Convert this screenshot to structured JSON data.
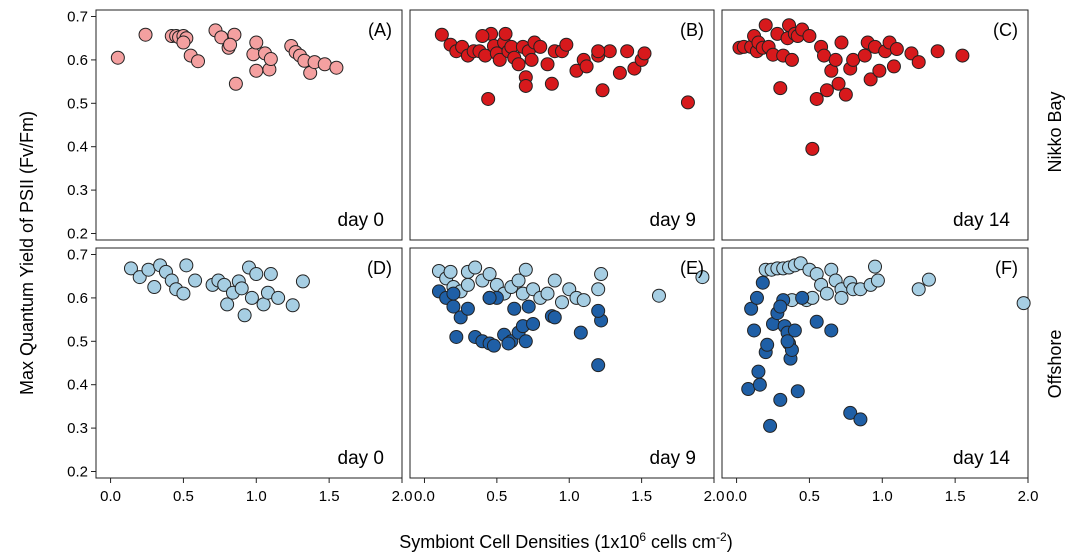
{
  "figure": {
    "ylabel": "Max Quantum Yield of PSII (Fv/Fm)",
    "xlabel_main": "Symbiont Cell Densities (1x10",
    "xlabel_sup1": "6",
    "xlabel_mid": " cells cm",
    "xlabel_sup2": "-2",
    "xlabel_end": ")",
    "row_labels": [
      "Nikko Bay",
      "Offshore"
    ]
  },
  "chart_data": [
    {
      "type": "scatter",
      "panel": "(A)",
      "day": "day 0",
      "row": "Nikko Bay",
      "color": "#F4A0A0",
      "xlim": [
        0,
        2.0
      ],
      "ylim": [
        0.18,
        0.72
      ],
      "grid": false,
      "points": [
        [
          0.05,
          0.605
        ],
        [
          0.24,
          0.658
        ],
        [
          0.42,
          0.655
        ],
        [
          0.45,
          0.655
        ],
        [
          0.47,
          0.652
        ],
        [
          0.5,
          0.655
        ],
        [
          0.52,
          0.65
        ],
        [
          0.5,
          0.64
        ],
        [
          0.55,
          0.61
        ],
        [
          0.6,
          0.597
        ],
        [
          0.72,
          0.668
        ],
        [
          0.76,
          0.652
        ],
        [
          0.81,
          0.628
        ],
        [
          0.85,
          0.658
        ],
        [
          0.86,
          0.545
        ],
        [
          0.82,
          0.635
        ],
        [
          0.98,
          0.613
        ],
        [
          1.0,
          0.575
        ],
        [
          1.0,
          0.64
        ],
        [
          1.06,
          0.615
        ],
        [
          1.09,
          0.578
        ],
        [
          1.1,
          0.602
        ],
        [
          1.24,
          0.632
        ],
        [
          1.27,
          0.618
        ],
        [
          1.3,
          0.61
        ],
        [
          1.33,
          0.598
        ],
        [
          1.37,
          0.57
        ],
        [
          1.4,
          0.595
        ],
        [
          1.47,
          0.59
        ],
        [
          1.55,
          0.582
        ]
      ]
    },
    {
      "type": "scatter",
      "panel": "(B)",
      "day": "day 9",
      "row": "Nikko Bay",
      "color": "#D7191C",
      "xlim": [
        0,
        2.0
      ],
      "ylim": [
        0.18,
        0.72
      ],
      "grid": false,
      "points": [
        [
          0.12,
          0.658
        ],
        [
          0.18,
          0.635
        ],
        [
          0.22,
          0.62
        ],
        [
          0.26,
          0.63
        ],
        [
          0.3,
          0.61
        ],
        [
          0.34,
          0.62
        ],
        [
          0.38,
          0.62
        ],
        [
          0.42,
          0.61
        ],
        [
          0.44,
          0.51
        ],
        [
          0.46,
          0.66
        ],
        [
          0.48,
          0.632
        ],
        [
          0.5,
          0.615
        ],
        [
          0.52,
          0.6
        ],
        [
          0.55,
          0.64
        ],
        [
          0.58,
          0.62
        ],
        [
          0.6,
          0.63
        ],
        [
          0.62,
          0.605
        ],
        [
          0.65,
          0.59
        ],
        [
          0.68,
          0.63
        ],
        [
          0.7,
          0.56
        ],
        [
          0.72,
          0.62
        ],
        [
          0.74,
          0.6
        ],
        [
          0.76,
          0.64
        ],
        [
          0.8,
          0.63
        ],
        [
          0.85,
          0.59
        ],
        [
          0.88,
          0.545
        ],
        [
          0.9,
          0.62
        ],
        [
          0.95,
          0.62
        ],
        [
          0.98,
          0.635
        ],
        [
          1.05,
          0.575
        ],
        [
          1.1,
          0.6
        ],
        [
          1.12,
          0.585
        ],
        [
          1.2,
          0.61
        ],
        [
          1.23,
          0.53
        ],
        [
          1.28,
          0.62
        ],
        [
          1.35,
          0.57
        ],
        [
          1.4,
          0.62
        ],
        [
          1.45,
          0.58
        ],
        [
          1.5,
          0.6
        ],
        [
          1.82,
          0.502
        ],
        [
          0.4,
          0.655
        ],
        [
          0.56,
          0.66
        ],
        [
          0.7,
          0.54
        ],
        [
          1.2,
          0.62
        ],
        [
          1.52,
          0.615
        ]
      ]
    },
    {
      "type": "scatter",
      "panel": "(C)",
      "day": "day 14",
      "row": "Nikko Bay",
      "color": "#D7191C",
      "xlim": [
        0,
        2.0
      ],
      "ylim": [
        0.18,
        0.72
      ],
      "grid": false,
      "points": [
        [
          0.02,
          0.628
        ],
        [
          0.05,
          0.63
        ],
        [
          0.1,
          0.63
        ],
        [
          0.12,
          0.655
        ],
        [
          0.14,
          0.62
        ],
        [
          0.15,
          0.64
        ],
        [
          0.18,
          0.628
        ],
        [
          0.2,
          0.68
        ],
        [
          0.22,
          0.63
        ],
        [
          0.25,
          0.612
        ],
        [
          0.28,
          0.66
        ],
        [
          0.3,
          0.535
        ],
        [
          0.32,
          0.61
        ],
        [
          0.35,
          0.65
        ],
        [
          0.36,
          0.68
        ],
        [
          0.38,
          0.6
        ],
        [
          0.4,
          0.66
        ],
        [
          0.42,
          0.655
        ],
        [
          0.45,
          0.67
        ],
        [
          0.5,
          0.655
        ],
        [
          0.52,
          0.395
        ],
        [
          0.55,
          0.51
        ],
        [
          0.58,
          0.63
        ],
        [
          0.6,
          0.61
        ],
        [
          0.62,
          0.53
        ],
        [
          0.65,
          0.575
        ],
        [
          0.68,
          0.6
        ],
        [
          0.7,
          0.545
        ],
        [
          0.72,
          0.64
        ],
        [
          0.75,
          0.52
        ],
        [
          0.78,
          0.58
        ],
        [
          0.8,
          0.6
        ],
        [
          0.88,
          0.61
        ],
        [
          0.9,
          0.64
        ],
        [
          0.92,
          0.555
        ],
        [
          0.95,
          0.63
        ],
        [
          0.98,
          0.575
        ],
        [
          1.02,
          0.62
        ],
        [
          1.05,
          0.64
        ],
        [
          1.08,
          0.585
        ],
        [
          1.1,
          0.625
        ],
        [
          1.2,
          0.615
        ],
        [
          1.25,
          0.595
        ],
        [
          1.38,
          0.62
        ],
        [
          1.55,
          0.61
        ]
      ]
    },
    {
      "type": "scatter",
      "panel": "(D)",
      "day": "day 0",
      "row": "Offshore",
      "color": "#A6CEE3",
      "xlim": [
        0,
        2.0
      ],
      "ylim": [
        0.18,
        0.72
      ],
      "grid": false,
      "points": [
        [
          0.14,
          0.668
        ],
        [
          0.2,
          0.648
        ],
        [
          0.26,
          0.665
        ],
        [
          0.3,
          0.625
        ],
        [
          0.34,
          0.675
        ],
        [
          0.38,
          0.66
        ],
        [
          0.42,
          0.64
        ],
        [
          0.45,
          0.62
        ],
        [
          0.5,
          0.61
        ],
        [
          0.52,
          0.675
        ],
        [
          0.58,
          0.64
        ],
        [
          0.7,
          0.63
        ],
        [
          0.74,
          0.64
        ],
        [
          0.78,
          0.63
        ],
        [
          0.8,
          0.585
        ],
        [
          0.84,
          0.612
        ],
        [
          0.88,
          0.638
        ],
        [
          0.9,
          0.622
        ],
        [
          0.92,
          0.56
        ],
        [
          0.95,
          0.67
        ],
        [
          0.97,
          0.6
        ],
        [
          1.0,
          0.655
        ],
        [
          1.05,
          0.585
        ],
        [
          1.08,
          0.612
        ],
        [
          1.1,
          0.655
        ],
        [
          1.15,
          0.6
        ],
        [
          1.25,
          0.583
        ],
        [
          1.32,
          0.638
        ]
      ]
    },
    {
      "type": "scatter",
      "panel": "(E)",
      "day": "day 9",
      "row": "Offshore",
      "color": "#A6CEE3",
      "color2": "#1F5FA6",
      "xlim": [
        0,
        2.0
      ],
      "ylim": [
        0.18,
        0.72
      ],
      "grid": false,
      "points_light": [
        [
          0.1,
          0.662
        ],
        [
          0.15,
          0.645
        ],
        [
          0.18,
          0.66
        ],
        [
          0.2,
          0.625
        ],
        [
          0.25,
          0.615
        ],
        [
          0.3,
          0.66
        ],
        [
          0.35,
          0.67
        ],
        [
          0.4,
          0.64
        ],
        [
          0.45,
          0.655
        ],
        [
          0.5,
          0.63
        ],
        [
          0.55,
          0.61
        ],
        [
          0.6,
          0.625
        ],
        [
          0.65,
          0.64
        ],
        [
          0.68,
          0.61
        ],
        [
          0.7,
          0.665
        ],
        [
          0.75,
          0.62
        ],
        [
          0.8,
          0.6
        ],
        [
          0.85,
          0.61
        ],
        [
          0.9,
          0.64
        ],
        [
          0.95,
          0.59
        ],
        [
          1.0,
          0.62
        ],
        [
          1.05,
          0.6
        ],
        [
          1.1,
          0.595
        ],
        [
          1.2,
          0.62
        ],
        [
          1.22,
          0.655
        ],
        [
          1.62,
          0.605
        ],
        [
          1.92,
          0.648
        ],
        [
          0.3,
          0.63
        ],
        [
          0.45,
          0.6
        ]
      ],
      "points_dark": [
        [
          0.1,
          0.615
        ],
        [
          0.15,
          0.6
        ],
        [
          0.2,
          0.58
        ],
        [
          0.22,
          0.51
        ],
        [
          0.25,
          0.555
        ],
        [
          0.3,
          0.575
        ],
        [
          0.35,
          0.51
        ],
        [
          0.4,
          0.5
        ],
        [
          0.45,
          0.495
        ],
        [
          0.48,
          0.49
        ],
        [
          0.5,
          0.6
        ],
        [
          0.55,
          0.515
        ],
        [
          0.6,
          0.5
        ],
        [
          0.62,
          0.575
        ],
        [
          0.65,
          0.52
        ],
        [
          0.68,
          0.535
        ],
        [
          0.7,
          0.5
        ],
        [
          0.72,
          0.58
        ],
        [
          0.75,
          0.54
        ],
        [
          0.88,
          0.558
        ],
        [
          0.9,
          0.555
        ],
        [
          1.08,
          0.52
        ],
        [
          1.2,
          0.445
        ],
        [
          1.22,
          0.548
        ],
        [
          1.2,
          0.57
        ],
        [
          0.45,
          0.6
        ],
        [
          0.2,
          0.61
        ],
        [
          0.58,
          0.495
        ]
      ]
    },
    {
      "type": "scatter",
      "panel": "(F)",
      "day": "day 14",
      "row": "Offshore",
      "color": "#A6CEE3",
      "color2": "#1F5FA6",
      "xlim": [
        0,
        2.0
      ],
      "ylim": [
        0.18,
        0.72
      ],
      "grid": false,
      "points_light": [
        [
          0.2,
          0.665
        ],
        [
          0.24,
          0.665
        ],
        [
          0.28,
          0.668
        ],
        [
          0.32,
          0.668
        ],
        [
          0.36,
          0.67
        ],
        [
          0.4,
          0.675
        ],
        [
          0.44,
          0.68
        ],
        [
          0.5,
          0.665
        ],
        [
          0.55,
          0.655
        ],
        [
          0.58,
          0.63
        ],
        [
          0.62,
          0.61
        ],
        [
          0.65,
          0.665
        ],
        [
          0.68,
          0.64
        ],
        [
          0.72,
          0.62
        ],
        [
          0.78,
          0.635
        ],
        [
          0.8,
          0.62
        ],
        [
          0.85,
          0.62
        ],
        [
          0.92,
          0.63
        ],
        [
          0.95,
          0.672
        ],
        [
          0.97,
          0.64
        ],
        [
          1.25,
          0.62
        ],
        [
          1.32,
          0.642
        ],
        [
          1.97,
          0.588
        ],
        [
          0.38,
          0.595
        ],
        [
          0.48,
          0.595
        ],
        [
          0.52,
          0.6
        ],
        [
          0.72,
          0.6
        ]
      ],
      "points_dark": [
        [
          0.08,
          0.39
        ],
        [
          0.1,
          0.575
        ],
        [
          0.12,
          0.525
        ],
        [
          0.14,
          0.6
        ],
        [
          0.15,
          0.43
        ],
        [
          0.16,
          0.4
        ],
        [
          0.18,
          0.635
        ],
        [
          0.2,
          0.475
        ],
        [
          0.21,
          0.492
        ],
        [
          0.23,
          0.305
        ],
        [
          0.25,
          0.54
        ],
        [
          0.28,
          0.565
        ],
        [
          0.3,
          0.365
        ],
        [
          0.32,
          0.595
        ],
        [
          0.33,
          0.535
        ],
        [
          0.35,
          0.52
        ],
        [
          0.36,
          0.495
        ],
        [
          0.37,
          0.46
        ],
        [
          0.38,
          0.48
        ],
        [
          0.4,
          0.525
        ],
        [
          0.42,
          0.385
        ],
        [
          0.45,
          0.6
        ],
        [
          0.55,
          0.545
        ],
        [
          0.65,
          0.525
        ],
        [
          0.78,
          0.335
        ],
        [
          0.85,
          0.32
        ],
        [
          0.35,
          0.5
        ],
        [
          0.3,
          0.58
        ]
      ]
    }
  ],
  "axes": {
    "yticks": [
      "0.2",
      "0.3",
      "0.4",
      "0.5",
      "0.6",
      "0.7"
    ],
    "xticks": [
      "0.0",
      "0.5",
      "1.0",
      "1.5",
      "2.0"
    ]
  }
}
